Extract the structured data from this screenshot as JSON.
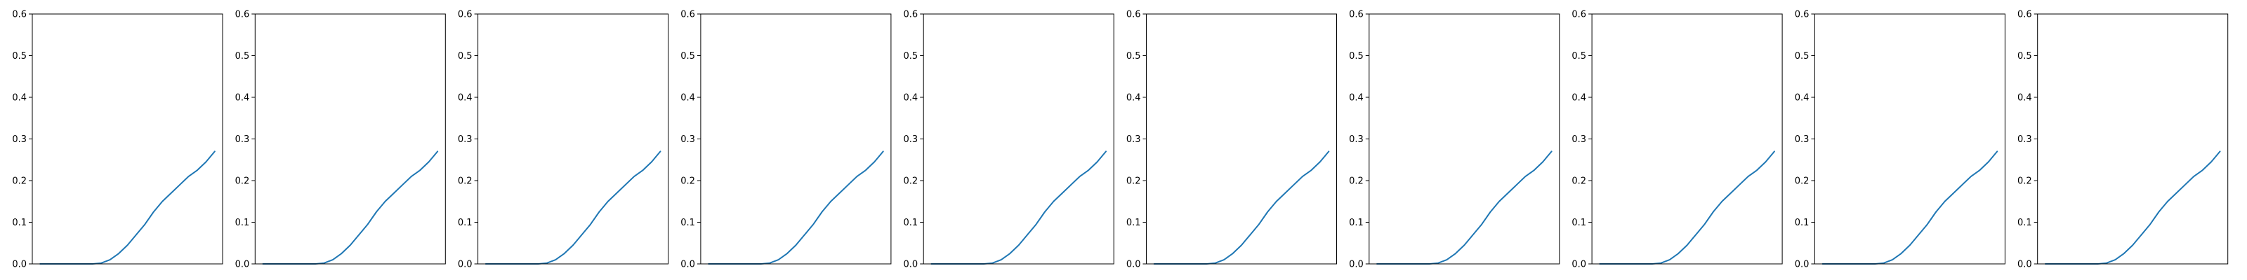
{
  "colors": {
    "background": "#ffffff",
    "axes": "#000000",
    "line": "#1f77b4"
  },
  "chart_data": [
    {
      "type": "line",
      "title": "",
      "xlabel": "",
      "ylabel": "",
      "ylim": [
        0,
        0.6
      ],
      "yticks": [
        0.0,
        0.1,
        0.2,
        0.3,
        0.4,
        0.5,
        0.6
      ],
      "ytick_labels": [
        "0.0",
        "0.1",
        "0.2",
        "0.3",
        "0.4",
        "0.5",
        "0.6"
      ],
      "xticks_visible": false,
      "grid": false,
      "series": [
        {
          "x": [
            0,
            5,
            10,
            15,
            20,
            25,
            30,
            35,
            40,
            45,
            50,
            55,
            60,
            65,
            70,
            75,
            80,
            85,
            90,
            95,
            100
          ],
          "y": [
            0.0,
            0.0,
            0.0,
            0.0,
            0.0,
            0.0,
            0.0,
            0.002,
            0.01,
            0.025,
            0.045,
            0.07,
            0.095,
            0.125,
            0.15,
            0.17,
            0.19,
            0.21,
            0.225,
            0.245,
            0.27
          ]
        }
      ]
    },
    {
      "type": "line",
      "title": "",
      "xlabel": "",
      "ylabel": "",
      "ylim": [
        0,
        0.6
      ],
      "yticks": [
        0.0,
        0.1,
        0.2,
        0.3,
        0.4,
        0.5,
        0.6
      ],
      "ytick_labels": [
        "0.0",
        "0.1",
        "0.2",
        "0.3",
        "0.4",
        "0.5",
        "0.6"
      ],
      "xticks_visible": false,
      "grid": false,
      "series": [
        {
          "x": [
            0,
            5,
            10,
            15,
            20,
            25,
            30,
            35,
            40,
            45,
            50,
            55,
            60,
            65,
            70,
            75,
            80,
            85,
            90,
            95,
            100
          ],
          "y": [
            0.0,
            0.0,
            0.0,
            0.0,
            0.0,
            0.0,
            0.0,
            0.002,
            0.01,
            0.025,
            0.045,
            0.07,
            0.095,
            0.125,
            0.15,
            0.17,
            0.19,
            0.21,
            0.225,
            0.245,
            0.27
          ]
        }
      ]
    },
    {
      "type": "line",
      "title": "",
      "xlabel": "",
      "ylabel": "",
      "ylim": [
        0,
        0.6
      ],
      "yticks": [
        0.0,
        0.1,
        0.2,
        0.3,
        0.4,
        0.5,
        0.6
      ],
      "ytick_labels": [
        "0.0",
        "0.1",
        "0.2",
        "0.3",
        "0.4",
        "0.5",
        "0.6"
      ],
      "xticks_visible": false,
      "grid": false,
      "series": [
        {
          "x": [
            0,
            5,
            10,
            15,
            20,
            25,
            30,
            35,
            40,
            45,
            50,
            55,
            60,
            65,
            70,
            75,
            80,
            85,
            90,
            95,
            100
          ],
          "y": [
            0.0,
            0.0,
            0.0,
            0.0,
            0.0,
            0.0,
            0.0,
            0.002,
            0.01,
            0.025,
            0.045,
            0.07,
            0.095,
            0.125,
            0.15,
            0.17,
            0.19,
            0.21,
            0.225,
            0.245,
            0.27
          ]
        }
      ]
    },
    {
      "type": "line",
      "title": "",
      "xlabel": "",
      "ylabel": "",
      "ylim": [
        0,
        0.6
      ],
      "yticks": [
        0.0,
        0.1,
        0.2,
        0.3,
        0.4,
        0.5,
        0.6
      ],
      "ytick_labels": [
        "0.0",
        "0.1",
        "0.2",
        "0.3",
        "0.4",
        "0.5",
        "0.6"
      ],
      "xticks_visible": false,
      "grid": false,
      "series": [
        {
          "x": [
            0,
            5,
            10,
            15,
            20,
            25,
            30,
            35,
            40,
            45,
            50,
            55,
            60,
            65,
            70,
            75,
            80,
            85,
            90,
            95,
            100
          ],
          "y": [
            0.0,
            0.0,
            0.0,
            0.0,
            0.0,
            0.0,
            0.0,
            0.002,
            0.01,
            0.025,
            0.045,
            0.07,
            0.095,
            0.125,
            0.15,
            0.17,
            0.19,
            0.21,
            0.225,
            0.245,
            0.27
          ]
        }
      ]
    },
    {
      "type": "line",
      "title": "",
      "xlabel": "",
      "ylabel": "",
      "ylim": [
        0,
        0.6
      ],
      "yticks": [
        0.0,
        0.1,
        0.2,
        0.3,
        0.4,
        0.5,
        0.6
      ],
      "ytick_labels": [
        "0.0",
        "0.1",
        "0.2",
        "0.3",
        "0.4",
        "0.5",
        "0.6"
      ],
      "xticks_visible": false,
      "grid": false,
      "series": [
        {
          "x": [
            0,
            5,
            10,
            15,
            20,
            25,
            30,
            35,
            40,
            45,
            50,
            55,
            60,
            65,
            70,
            75,
            80,
            85,
            90,
            95,
            100
          ],
          "y": [
            0.0,
            0.0,
            0.0,
            0.0,
            0.0,
            0.0,
            0.0,
            0.002,
            0.01,
            0.025,
            0.045,
            0.07,
            0.095,
            0.125,
            0.15,
            0.17,
            0.19,
            0.21,
            0.225,
            0.245,
            0.27
          ]
        }
      ]
    },
    {
      "type": "line",
      "title": "",
      "xlabel": "",
      "ylabel": "",
      "ylim": [
        0,
        0.6
      ],
      "yticks": [
        0.0,
        0.1,
        0.2,
        0.3,
        0.4,
        0.5,
        0.6
      ],
      "ytick_labels": [
        "0.0",
        "0.1",
        "0.2",
        "0.3",
        "0.4",
        "0.5",
        "0.6"
      ],
      "xticks_visible": false,
      "grid": false,
      "series": [
        {
          "x": [
            0,
            5,
            10,
            15,
            20,
            25,
            30,
            35,
            40,
            45,
            50,
            55,
            60,
            65,
            70,
            75,
            80,
            85,
            90,
            95,
            100
          ],
          "y": [
            0.0,
            0.0,
            0.0,
            0.0,
            0.0,
            0.0,
            0.0,
            0.002,
            0.01,
            0.025,
            0.045,
            0.07,
            0.095,
            0.125,
            0.15,
            0.17,
            0.19,
            0.21,
            0.225,
            0.245,
            0.27
          ]
        }
      ]
    },
    {
      "type": "line",
      "title": "",
      "xlabel": "",
      "ylabel": "",
      "ylim": [
        0,
        0.6
      ],
      "yticks": [
        0.0,
        0.1,
        0.2,
        0.3,
        0.4,
        0.5,
        0.6
      ],
      "ytick_labels": [
        "0.0",
        "0.1",
        "0.2",
        "0.3",
        "0.4",
        "0.5",
        "0.6"
      ],
      "xticks_visible": false,
      "grid": false,
      "series": [
        {
          "x": [
            0,
            5,
            10,
            15,
            20,
            25,
            30,
            35,
            40,
            45,
            50,
            55,
            60,
            65,
            70,
            75,
            80,
            85,
            90,
            95,
            100
          ],
          "y": [
            0.0,
            0.0,
            0.0,
            0.0,
            0.0,
            0.0,
            0.0,
            0.002,
            0.01,
            0.025,
            0.045,
            0.07,
            0.095,
            0.125,
            0.15,
            0.17,
            0.19,
            0.21,
            0.225,
            0.245,
            0.27
          ]
        }
      ]
    },
    {
      "type": "line",
      "title": "",
      "xlabel": "",
      "ylabel": "",
      "ylim": [
        0,
        0.6
      ],
      "yticks": [
        0.0,
        0.1,
        0.2,
        0.3,
        0.4,
        0.5,
        0.6
      ],
      "ytick_labels": [
        "0.0",
        "0.1",
        "0.2",
        "0.3",
        "0.4",
        "0.5",
        "0.6"
      ],
      "xticks_visible": false,
      "grid": false,
      "series": [
        {
          "x": [
            0,
            5,
            10,
            15,
            20,
            25,
            30,
            35,
            40,
            45,
            50,
            55,
            60,
            65,
            70,
            75,
            80,
            85,
            90,
            95,
            100
          ],
          "y": [
            0.0,
            0.0,
            0.0,
            0.0,
            0.0,
            0.0,
            0.0,
            0.002,
            0.01,
            0.025,
            0.045,
            0.07,
            0.095,
            0.125,
            0.15,
            0.17,
            0.19,
            0.21,
            0.225,
            0.245,
            0.27
          ]
        }
      ]
    },
    {
      "type": "line",
      "title": "",
      "xlabel": "",
      "ylabel": "",
      "ylim": [
        0,
        0.6
      ],
      "yticks": [
        0.0,
        0.1,
        0.2,
        0.3,
        0.4,
        0.5,
        0.6
      ],
      "ytick_labels": [
        "0.0",
        "0.1",
        "0.2",
        "0.3",
        "0.4",
        "0.5",
        "0.6"
      ],
      "xticks_visible": false,
      "grid": false,
      "series": [
        {
          "x": [
            0,
            5,
            10,
            15,
            20,
            25,
            30,
            35,
            40,
            45,
            50,
            55,
            60,
            65,
            70,
            75,
            80,
            85,
            90,
            95,
            100
          ],
          "y": [
            0.0,
            0.0,
            0.0,
            0.0,
            0.0,
            0.0,
            0.0,
            0.002,
            0.01,
            0.025,
            0.045,
            0.07,
            0.095,
            0.125,
            0.15,
            0.17,
            0.19,
            0.21,
            0.225,
            0.245,
            0.27
          ]
        }
      ]
    },
    {
      "type": "line",
      "title": "",
      "xlabel": "",
      "ylabel": "",
      "ylim": [
        0,
        0.6
      ],
      "yticks": [
        0.0,
        0.1,
        0.2,
        0.3,
        0.4,
        0.5,
        0.6
      ],
      "ytick_labels": [
        "0.0",
        "0.1",
        "0.2",
        "0.3",
        "0.4",
        "0.5",
        "0.6"
      ],
      "xticks_visible": false,
      "grid": false,
      "series": [
        {
          "x": [
            0,
            5,
            10,
            15,
            20,
            25,
            30,
            35,
            40,
            45,
            50,
            55,
            60,
            65,
            70,
            75,
            80,
            85,
            90,
            95,
            100
          ],
          "y": [
            0.0,
            0.0,
            0.0,
            0.0,
            0.0,
            0.0,
            0.0,
            0.002,
            0.01,
            0.025,
            0.045,
            0.07,
            0.095,
            0.125,
            0.15,
            0.17,
            0.19,
            0.21,
            0.225,
            0.245,
            0.27
          ]
        }
      ]
    }
  ]
}
